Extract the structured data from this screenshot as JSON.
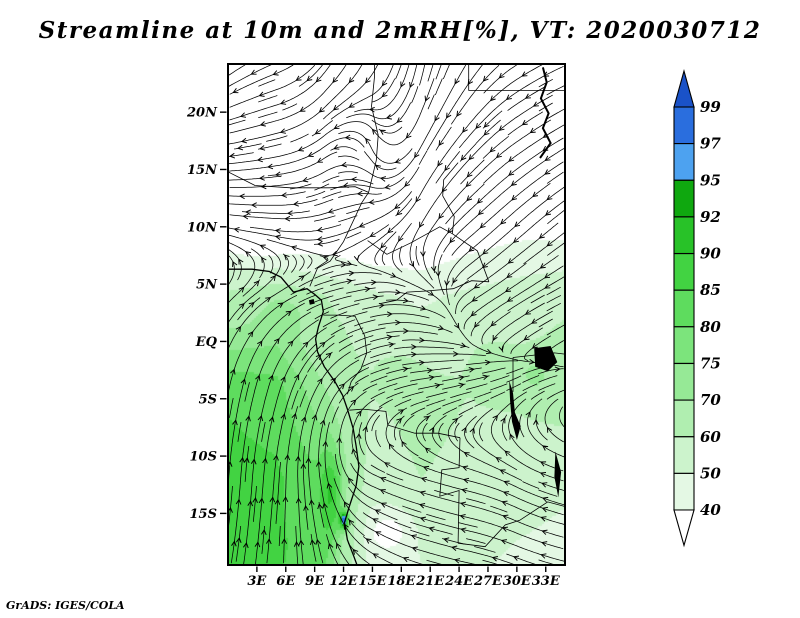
{
  "title": "Streamline at 10m and 2mRH[%], VT: 2020030712",
  "credit": "GrADS: IGES/COLA",
  "chart_data": {
    "type": "streamline_contour_map",
    "title": "Streamline at 10m and 2mRH[%], VT: 2020030712",
    "valid_time": "2020030712",
    "fields": [
      "10m streamlines",
      "2m relative humidity [%]"
    ],
    "domain": {
      "lon_min": 0,
      "lon_max": 35,
      "lat_min": -19.5,
      "lat_max": 24.2
    },
    "x_axis": {
      "ticks": [
        3,
        6,
        9,
        12,
        15,
        18,
        21,
        24,
        27,
        30,
        33
      ],
      "labels": [
        "3E",
        "6E",
        "9E",
        "12E",
        "15E",
        "18E",
        "21E",
        "24E",
        "27E",
        "30E",
        "33E"
      ]
    },
    "y_axis": {
      "ticks": [
        20,
        15,
        10,
        5,
        0,
        -5,
        -10,
        -15
      ],
      "labels": [
        "20N",
        "15N",
        "10N",
        "5N",
        "EQ",
        "5S",
        "10S",
        "15S"
      ]
    },
    "colorbar": {
      "levels": [
        40,
        50,
        60,
        70,
        75,
        80,
        85,
        90,
        92,
        95,
        97,
        99
      ],
      "palette": [
        "#ffffff",
        "#e4f8e4",
        "#ccf3cc",
        "#b0eeb0",
        "#96e996",
        "#7ce47c",
        "#5edc5e",
        "#42d342",
        "#28c228",
        "#0fa80f",
        "#4da2f0",
        "#2a6ede",
        "#1a52c8"
      ]
    },
    "rh_grid": {
      "lons": [
        0,
        5,
        10,
        15,
        20,
        25,
        30,
        35
      ],
      "lats": [
        24,
        17,
        10,
        4,
        -4,
        -12,
        -19.5
      ],
      "values": [
        [
          25,
          25,
          25,
          25,
          25,
          28,
          28,
          28
        ],
        [
          26,
          26,
          24,
          22,
          22,
          28,
          30,
          30
        ],
        [
          30,
          28,
          26,
          25,
          26,
          32,
          36,
          36
        ],
        [
          62,
          66,
          60,
          52,
          48,
          52,
          55,
          58
        ],
        [
          84,
          82,
          70,
          60,
          63,
          60,
          62,
          66
        ],
        [
          87,
          86,
          80,
          56,
          60,
          58,
          55,
          52
        ],
        [
          86,
          85,
          80,
          46,
          50,
          52,
          48,
          46
        ]
      ]
    },
    "rh_hotspots": [
      {
        "lon": 10.8,
        "lat": -13.5,
        "rlon": 1.1,
        "rlat": 4.0,
        "amp": 14
      },
      {
        "lon": 12.1,
        "lat": -15.6,
        "rlon": 0.55,
        "rlat": 0.9,
        "amp": 28
      },
      {
        "lon": 16.8,
        "lat": -16.5,
        "rlon": 2.4,
        "rlat": 2.0,
        "amp": -16
      },
      {
        "lon": 17.5,
        "lat": -3.0,
        "rlon": 2.0,
        "rlat": 1.6,
        "amp": 8
      },
      {
        "lon": 27.5,
        "lat": -2.0,
        "rlon": 2.2,
        "rlat": 1.8,
        "amp": 9
      },
      {
        "lon": 31.8,
        "lat": -2.8,
        "rlon": 1.6,
        "rlat": 1.6,
        "amp": 10
      },
      {
        "lon": 6.0,
        "lat": 2.5,
        "rlon": 2.5,
        "rlat": 1.8,
        "amp": 6
      },
      {
        "lon": 2.0,
        "lat": -18.0,
        "rlon": 3.5,
        "rlat": 2.5,
        "amp": 4
      },
      {
        "lon": 3.5,
        "lat": 9.0,
        "rlon": 3.0,
        "rlat": 2.0,
        "amp": -8
      }
    ],
    "wind_grid": {
      "lons": [
        0,
        5,
        10,
        15,
        20,
        25,
        30,
        35
      ],
      "lats": [
        24,
        17,
        10,
        4,
        -4,
        -12,
        -19.5
      ],
      "u": [
        [
          -0.8,
          -1.0,
          -0.6,
          -0.5,
          -0.2,
          -0.5,
          -0.8,
          -0.9
        ],
        [
          -1.2,
          -1.3,
          -0.8,
          -0.4,
          -0.6,
          -0.8,
          -1.0,
          -1.0
        ],
        [
          -1.3,
          -1.2,
          -0.9,
          -1.0,
          -0.5,
          -0.9,
          -1.0,
          -1.0
        ],
        [
          0.8,
          1.0,
          1.0,
          1.1,
          0.9,
          -0.6,
          -0.8,
          -0.8
        ],
        [
          0.3,
          0.4,
          0.6,
          0.9,
          1.0,
          0.8,
          0.4,
          0.3
        ],
        [
          0.1,
          0.1,
          -0.2,
          -0.9,
          -1.0,
          -0.8,
          -0.6,
          -0.7
        ],
        [
          0.2,
          0.1,
          -0.3,
          -0.8,
          -1.0,
          -0.9,
          -0.8,
          -0.8
        ]
      ],
      "v": [
        [
          -0.6,
          -0.4,
          -0.8,
          -0.9,
          -1.0,
          -0.8,
          -0.5,
          -0.4
        ],
        [
          -0.2,
          -0.3,
          -0.6,
          0.9,
          -1.1,
          -0.9,
          -0.7,
          -0.6
        ],
        [
          0.2,
          0.1,
          -0.2,
          -0.5,
          -0.9,
          -0.8,
          -0.9,
          -0.8
        ],
        [
          0.8,
          0.6,
          0.3,
          0.2,
          -0.3,
          -0.4,
          -0.5,
          -0.4
        ],
        [
          1.4,
          1.3,
          1.0,
          0.4,
          0.2,
          0.2,
          0.2,
          0.1
        ],
        [
          1.4,
          1.3,
          1.2,
          0.4,
          0.3,
          0.2,
          0.3,
          0.2
        ],
        [
          1.2,
          1.2,
          1.0,
          0.5,
          0.3,
          0.2,
          0.3,
          0.2
        ]
      ]
    },
    "coastline": [
      [
        0,
        6.3
      ],
      [
        2.5,
        6.3
      ],
      [
        4.3,
        6.1
      ],
      [
        5.5,
        5.6
      ],
      [
        6.8,
        4.3
      ],
      [
        8.2,
        4.6
      ],
      [
        9.0,
        4.1
      ],
      [
        9.7,
        3.6
      ],
      [
        9.9,
        2.6
      ],
      [
        9.4,
        1.3
      ],
      [
        9.1,
        0.2
      ],
      [
        9.3,
        -0.9
      ],
      [
        10.0,
        -2.2
      ],
      [
        11.1,
        -3.5
      ],
      [
        11.9,
        -4.7
      ],
      [
        12.4,
        -5.9
      ],
      [
        13.0,
        -7.6
      ],
      [
        13.3,
        -9.1
      ],
      [
        13.6,
        -10.9
      ],
      [
        13.3,
        -12.6
      ],
      [
        12.6,
        -14.4
      ],
      [
        12.1,
        -15.8
      ],
      [
        12.4,
        -17.3
      ],
      [
        13.0,
        -18.6
      ],
      [
        13.4,
        -19.5
      ]
    ],
    "islands": [
      [
        [
          8.4,
          3.6
        ],
        [
          8.9,
          3.7
        ],
        [
          9.0,
          3.3
        ],
        [
          8.5,
          3.2
        ]
      ]
    ],
    "borders": [
      [
        [
          0,
          14.8
        ],
        [
          2.8,
          13.6
        ],
        [
          6.5,
          13.4
        ],
        [
          10.5,
          13.4
        ],
        [
          13.2,
          13.5
        ],
        [
          14.6,
          13.0
        ]
      ],
      [
        [
          14.6,
          13.0
        ],
        [
          15.4,
          15.8
        ],
        [
          15.6,
          18.0
        ],
        [
          14.9,
          20.5
        ],
        [
          15.2,
          23.0
        ],
        [
          15.2,
          24.2
        ]
      ],
      [
        [
          25,
          24.2
        ],
        [
          25,
          21.9
        ],
        [
          35,
          21.9
        ]
      ],
      [
        [
          23.9,
          15.6
        ],
        [
          22.4,
          14.1
        ],
        [
          22.3,
          12.7
        ],
        [
          23.5,
          10.9
        ],
        [
          23.3,
          9.4
        ]
      ],
      [
        [
          8.5,
          4.8
        ],
        [
          9.3,
          6.4
        ],
        [
          10.6,
          7.0
        ],
        [
          12.0,
          8.7
        ],
        [
          13.9,
          12.1
        ],
        [
          14.6,
          13.0
        ]
      ],
      [
        [
          14.5,
          8.8
        ],
        [
          16.5,
          7.6
        ],
        [
          19.0,
          8.6
        ],
        [
          22.0,
          10.0
        ],
        [
          23.3,
          9.4
        ]
      ],
      [
        [
          15.8,
          3.3
        ],
        [
          17.5,
          3.6
        ],
        [
          18.6,
          4.3
        ],
        [
          20.6,
          4.4
        ],
        [
          23.4,
          4.6
        ],
        [
          25.3,
          5.3
        ],
        [
          27.1,
          5.2
        ]
      ],
      [
        [
          23.3,
          9.4
        ],
        [
          25.9,
          7.9
        ],
        [
          27.1,
          5.2
        ]
      ],
      [
        [
          9.9,
          2.3
        ],
        [
          11.4,
          2.3
        ],
        [
          13.2,
          2.2
        ],
        [
          14.2,
          0.5
        ],
        [
          14.4,
          -1.0
        ],
        [
          13.8,
          -2.4
        ],
        [
          12.8,
          -3.5
        ],
        [
          12.4,
          -4.6
        ]
      ],
      [
        [
          12.6,
          -6.0
        ],
        [
          14.0,
          -5.9
        ],
        [
          16.4,
          -6.1
        ],
        [
          16.6,
          -7.3
        ],
        [
          19.4,
          -8.0
        ],
        [
          21.8,
          -8.0
        ],
        [
          24.1,
          -8.4
        ]
      ],
      [
        [
          24.1,
          -8.4
        ],
        [
          24.0,
          -11.0
        ],
        [
          22.2,
          -11.2
        ],
        [
          22.0,
          -13.5
        ],
        [
          24.0,
          -13.0
        ],
        [
          23.9,
          -17.6
        ]
      ],
      [
        [
          23.9,
          -17.6
        ],
        [
          26.7,
          -17.9
        ],
        [
          28.8,
          -16.0
        ],
        [
          30.3,
          -15.6
        ],
        [
          33.2,
          -14.0
        ],
        [
          35,
          -14.4
        ]
      ],
      [
        [
          29.6,
          -1.4
        ],
        [
          33.9,
          -1.0
        ],
        [
          35,
          -1.1
        ]
      ],
      [
        [
          29.6,
          -1.4
        ],
        [
          29.6,
          -4.4
        ]
      ]
    ],
    "lakes": [
      [
        [
          29.2,
          -3.4
        ],
        [
          29.6,
          -4.5
        ],
        [
          29.8,
          -6.2
        ],
        [
          30.4,
          -7.4
        ],
        [
          30.0,
          -8.6
        ],
        [
          29.5,
          -7.0
        ],
        [
          29.3,
          -5.2
        ]
      ],
      [
        [
          34.0,
          -9.6
        ],
        [
          34.6,
          -11.4
        ],
        [
          34.3,
          -13.6
        ],
        [
          33.9,
          -11.8
        ]
      ],
      [
        [
          31.8,
          -0.6
        ],
        [
          33.5,
          -0.4
        ],
        [
          34.2,
          -1.8
        ],
        [
          33.2,
          -2.6
        ],
        [
          31.9,
          -2.2
        ]
      ]
    ],
    "rivers": [
      [
        [
          32.4,
          16.0
        ],
        [
          33.5,
          17.3
        ],
        [
          32.7,
          18.6
        ],
        [
          33.3,
          19.9
        ],
        [
          32.5,
          21.2
        ],
        [
          33.1,
          22.6
        ],
        [
          32.7,
          23.9
        ]
      ]
    ]
  }
}
